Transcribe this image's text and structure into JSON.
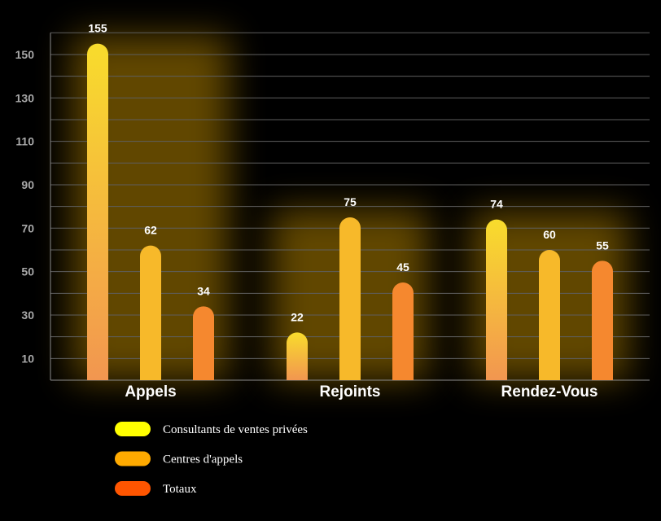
{
  "chart_data": {
    "type": "bar",
    "categories": [
      "Appels",
      "Rejoints",
      "Rendez-Vous"
    ],
    "series": [
      {
        "name": "Consultants de ventes privées",
        "values": [
          155,
          22,
          74
        ],
        "color": "#ffff00"
      },
      {
        "name": "Centres d'appels",
        "values": [
          62,
          75,
          60
        ],
        "color": "#ffaa00"
      },
      {
        "name": "Totaux",
        "values": [
          34,
          45,
          55
        ],
        "color": "#ff5500"
      }
    ],
    "yticks": [
      10,
      30,
      50,
      70,
      90,
      110,
      130,
      150
    ],
    "ylim": [
      0,
      160
    ],
    "grid": true,
    "legend_position": "bottom-left",
    "colors": {
      "background": "#000000",
      "glow": "#ffbb00",
      "gradient_top": "#f8dc2c",
      "gradient_bottom": "#f29650",
      "bar_mid": "#f7b92a",
      "bar_orange": "#f5882f"
    }
  }
}
